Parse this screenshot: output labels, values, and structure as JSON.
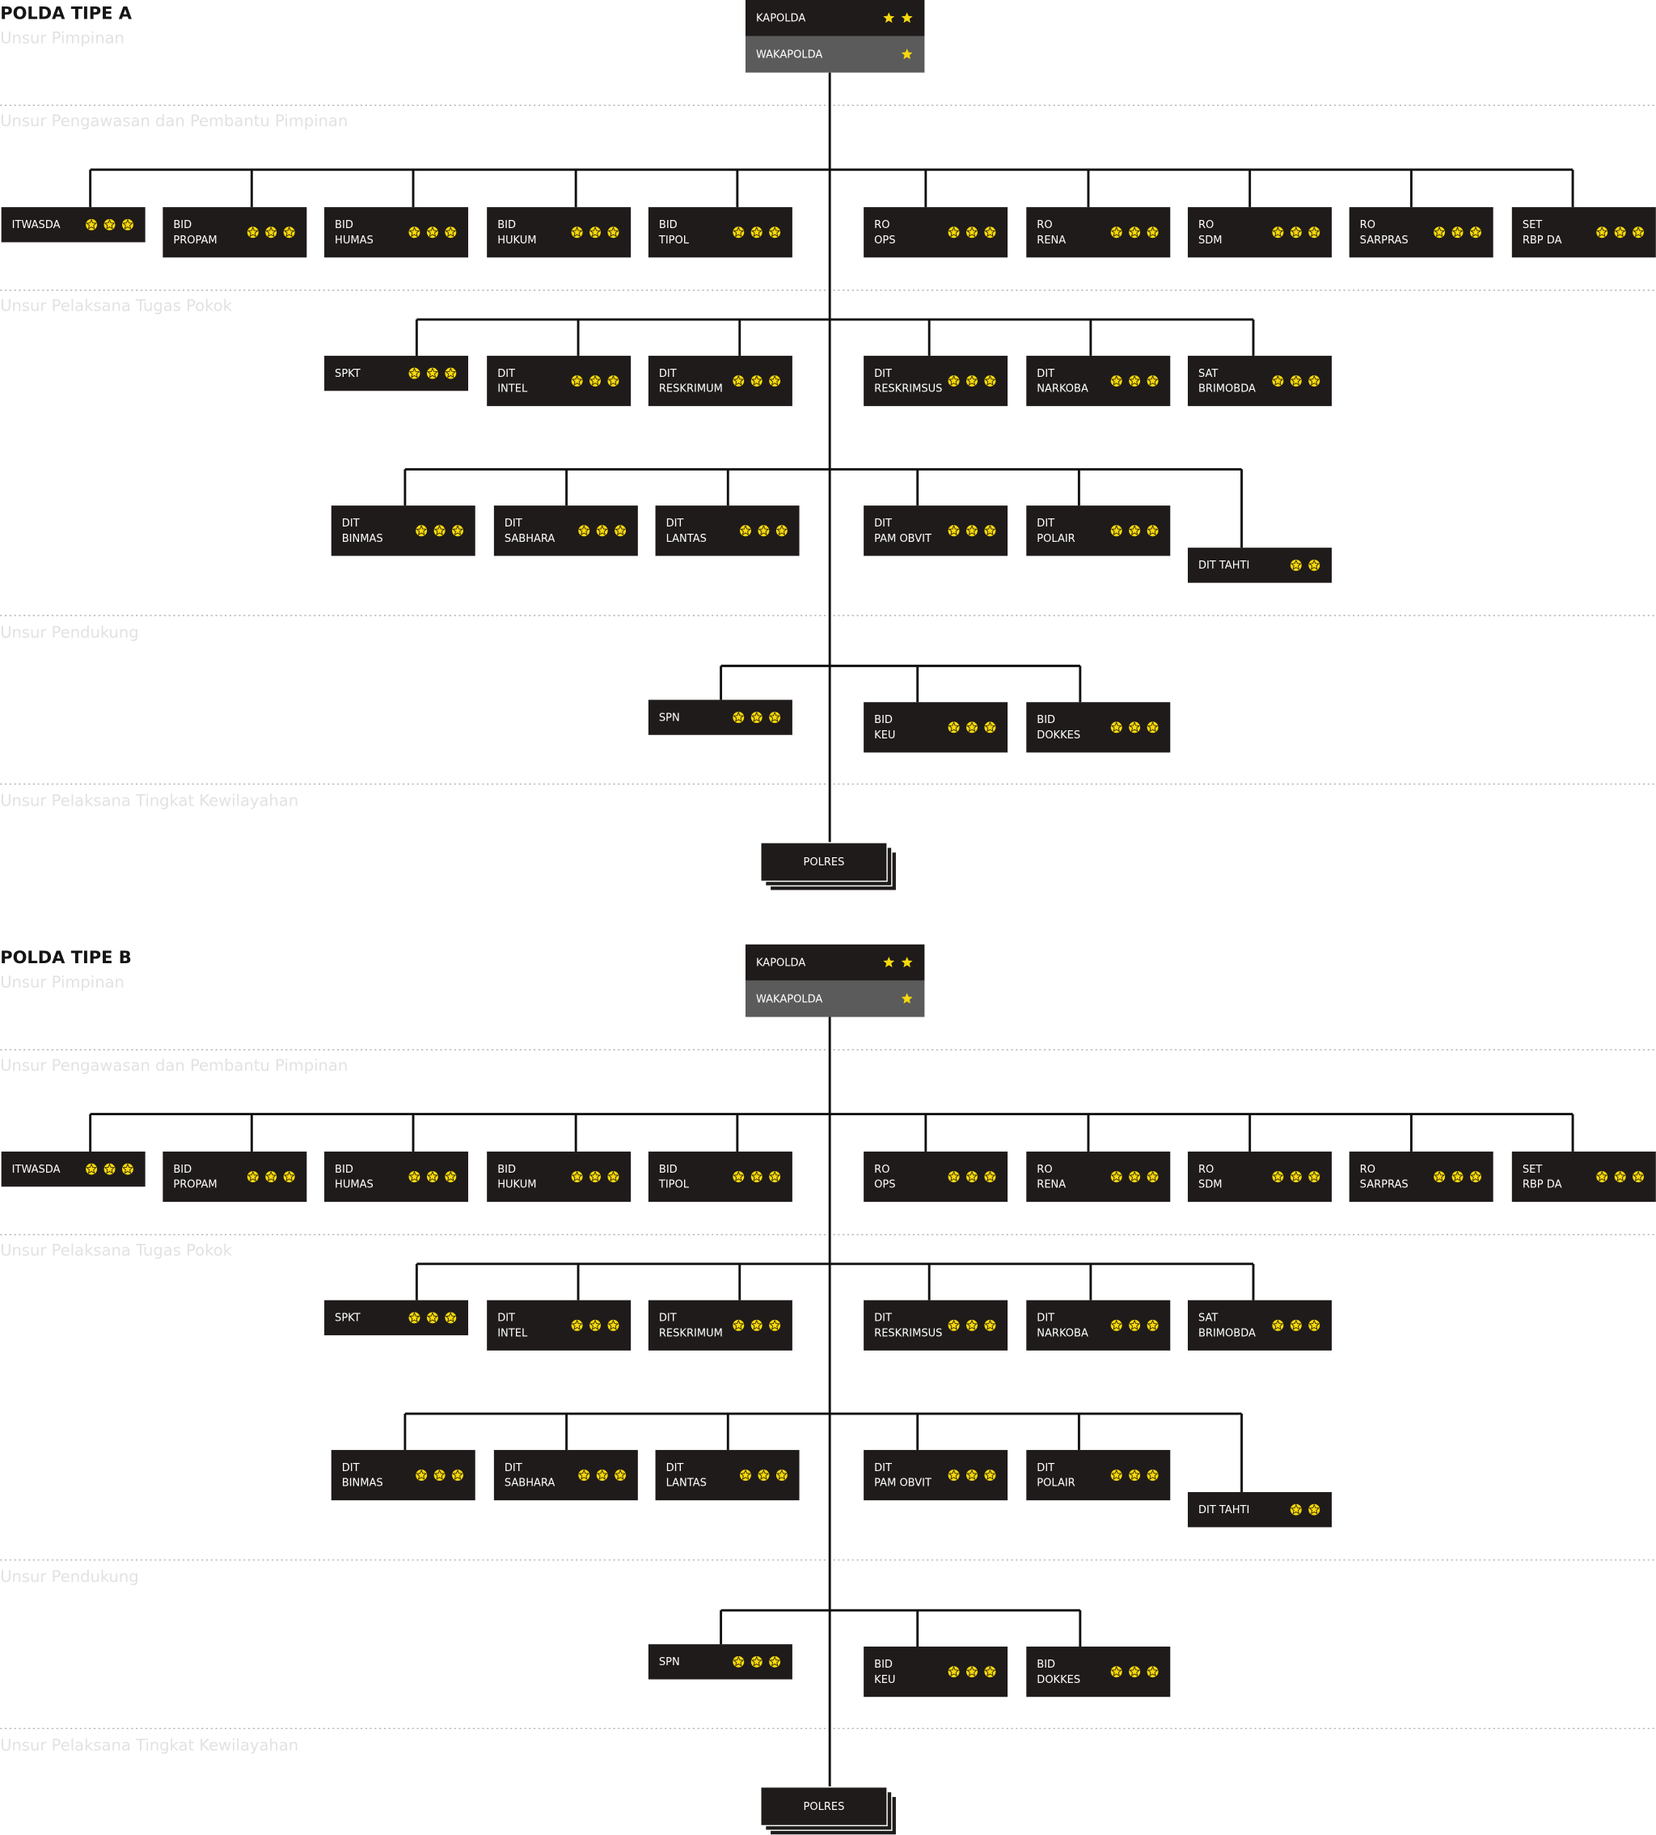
{
  "sections": [
    {
      "title": "POLDA TIPE A",
      "bands": [
        "Unsur Pimpinan",
        "Unsur Pengawasan dan Pembantu Pimpinan",
        "Unsur Pelaksana Tugas Pokok",
        "Unsur Pendukung",
        "Unsur Pelaksana Tingkat Kewilayahan"
      ],
      "leaders": [
        {
          "label": "KAPOLDA",
          "stars": 2
        },
        {
          "label": "WAKAPOLDA",
          "stars": 1
        }
      ],
      "rows": [
        [
          {
            "lines": [
              "ITWASDA"
            ],
            "stars": 3
          },
          {
            "lines": [
              "BID",
              "PROPAM"
            ],
            "stars": 3
          },
          {
            "lines": [
              "BID",
              "HUMAS"
            ],
            "stars": 3
          },
          {
            "lines": [
              "BID",
              "HUKUM"
            ],
            "stars": 3
          },
          {
            "lines": [
              "BID",
              "TIPOL"
            ],
            "stars": 3
          },
          {
            "lines": [
              "RO",
              "OPS"
            ],
            "stars": 3
          },
          {
            "lines": [
              "RO",
              "RENA"
            ],
            "stars": 3
          },
          {
            "lines": [
              "RO",
              "SDM"
            ],
            "stars": 3
          },
          {
            "lines": [
              "RO",
              "SARPRAS"
            ],
            "stars": 3
          },
          {
            "lines": [
              "SET",
              "RBP DA"
            ],
            "stars": 3
          }
        ],
        [
          {
            "lines": [
              "SPKT"
            ],
            "stars": 3
          },
          {
            "lines": [
              "DIT",
              "INTEL"
            ],
            "stars": 3
          },
          {
            "lines": [
              "DIT",
              "RESKRIMUM"
            ],
            "stars": 3
          },
          {
            "lines": [
              "DIT",
              "RESKRIMSUS"
            ],
            "stars": 3
          },
          {
            "lines": [
              "DIT",
              "NARKOBA"
            ],
            "stars": 3
          },
          {
            "lines": [
              "SAT",
              "BRIMOBDA"
            ],
            "stars": 3
          }
        ],
        [
          {
            "lines": [
              "DIT",
              "BINMAS"
            ],
            "stars": 3
          },
          {
            "lines": [
              "DIT",
              "SABHARA"
            ],
            "stars": 3
          },
          {
            "lines": [
              "DIT",
              "LANTAS"
            ],
            "stars": 3
          },
          {
            "lines": [
              "DIT",
              "PAM OBVIT"
            ],
            "stars": 3
          },
          {
            "lines": [
              "DIT",
              "POLAIR"
            ],
            "stars": 3
          },
          {
            "lines": [
              "DIT TAHTI"
            ],
            "stars": 2
          }
        ],
        [
          {
            "lines": [
              "SPN"
            ],
            "stars": 3
          },
          {
            "lines": [
              "BID",
              "KEU"
            ],
            "stars": 3
          },
          {
            "lines": [
              "BID",
              "DOKKES"
            ],
            "stars": 3
          }
        ]
      ],
      "base": "POLRES"
    },
    {
      "title": "POLDA TIPE B",
      "bands": [
        "Unsur Pimpinan",
        "Unsur Pengawasan dan Pembantu Pimpinan",
        "Unsur Pelaksana Tugas Pokok",
        "Unsur Pendukung",
        "Unsur Pelaksana Tingkat Kewilayahan"
      ],
      "leaders": [
        {
          "label": "KAPOLDA",
          "stars": 2
        },
        {
          "label": "WAKAPOLDA",
          "stars": 1
        }
      ],
      "rows": [
        [
          {
            "lines": [
              "ITWASDA"
            ],
            "stars": 3
          },
          {
            "lines": [
              "BID",
              "PROPAM"
            ],
            "stars": 3
          },
          {
            "lines": [
              "BID",
              "HUMAS"
            ],
            "stars": 3
          },
          {
            "lines": [
              "BID",
              "HUKUM"
            ],
            "stars": 3
          },
          {
            "lines": [
              "BID",
              "TIPOL"
            ],
            "stars": 3
          },
          {
            "lines": [
              "RO",
              "OPS"
            ],
            "stars": 3
          },
          {
            "lines": [
              "RO",
              "RENA"
            ],
            "stars": 3
          },
          {
            "lines": [
              "RO",
              "SDM"
            ],
            "stars": 3
          },
          {
            "lines": [
              "RO",
              "SARPRAS"
            ],
            "stars": 3
          },
          {
            "lines": [
              "SET",
              "RBP DA"
            ],
            "stars": 3
          }
        ],
        [
          {
            "lines": [
              "SPKT"
            ],
            "stars": 3
          },
          {
            "lines": [
              "DIT",
              "INTEL"
            ],
            "stars": 3
          },
          {
            "lines": [
              "DIT",
              "RESKRIMUM"
            ],
            "stars": 3
          },
          {
            "lines": [
              "DIT",
              "RESKRIMSUS"
            ],
            "stars": 3
          },
          {
            "lines": [
              "DIT",
              "NARKOBA"
            ],
            "stars": 3
          },
          {
            "lines": [
              "SAT",
              "BRIMOBDA"
            ],
            "stars": 3
          }
        ],
        [
          {
            "lines": [
              "DIT",
              "BINMAS"
            ],
            "stars": 3
          },
          {
            "lines": [
              "DIT",
              "SABHARA"
            ],
            "stars": 3
          },
          {
            "lines": [
              "DIT",
              "LANTAS"
            ],
            "stars": 3
          },
          {
            "lines": [
              "DIT",
              "PAM OBVIT"
            ],
            "stars": 3
          },
          {
            "lines": [
              "DIT",
              "POLAIR"
            ],
            "stars": 3
          },
          {
            "lines": [
              "DIT TAHTI"
            ],
            "stars": 2
          }
        ],
        [
          {
            "lines": [
              "SPN"
            ],
            "stars": 3
          },
          {
            "lines": [
              "BID",
              "KEU"
            ],
            "stars": 3
          },
          {
            "lines": [
              "BID",
              "DOKKES"
            ],
            "stars": 3
          }
        ]
      ],
      "base": "POLRES"
    }
  ]
}
